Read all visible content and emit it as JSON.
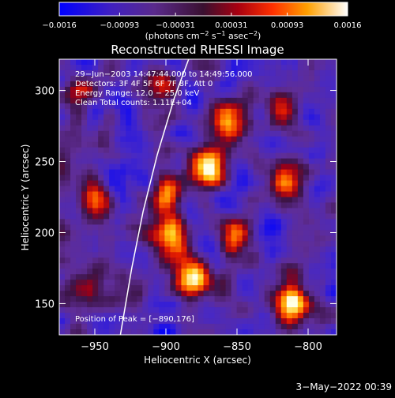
{
  "chart_data": {
    "type": "heatmap",
    "title": "Reconstructed RHESSI Image",
    "xlabel": "Heliocentric X (arcsec)",
    "ylabel": "Heliocentric Y (arcsec)",
    "xlim": [
      -975,
      -780
    ],
    "ylim": [
      128,
      322
    ],
    "x_ticks": [
      -950,
      -900,
      -850,
      -800
    ],
    "x_tick_labels": [
      "−950",
      "−900",
      "−850",
      "−800"
    ],
    "y_ticks": [
      150,
      200,
      250,
      300
    ],
    "y_tick_labels": [
      "150",
      "200",
      "250",
      "300"
    ],
    "colorbar": {
      "range": [
        -0.0016,
        0.0016
      ],
      "ticks": [
        -0.0016,
        -0.00093,
        -0.00031,
        0.00031,
        0.00093,
        0.0016
      ],
      "tick_labels": [
        "−0.0016",
        "−0.00093",
        "−0.00031",
        "0.00031",
        "0.00093",
        "0.0016"
      ],
      "unit_main": "(photons cm",
      "unit_exp1": "−2",
      "unit_mid": " s",
      "unit_exp2": "−1",
      "unit_mid2": " asec",
      "unit_exp3": "−2",
      "unit_end": ")"
    },
    "annotations": [
      "29−Jun−2003 14:47:44.000 to 14:49:56.000",
      "Detectors: 3F 4F 5F 6F 7F 8F, Att 0",
      "Energy Range: 12.0 − 25.0 keV",
      "Clean    Total counts: 1.11E+04"
    ],
    "peak_label": "Position of Peak = [−890,176]",
    "peak_position": [
      -890,
      176
    ],
    "limb_curve": [
      [
        -932,
        128
      ],
      [
        -924,
        175
      ],
      [
        -916,
        215
      ],
      [
        -906,
        255
      ],
      [
        -894,
        295
      ],
      [
        -884,
        322
      ]
    ],
    "hot_regions": [
      {
        "x": -870,
        "y": 245,
        "intensity": 1.0
      },
      {
        "x": -895,
        "y": 195,
        "intensity": 1.0
      },
      {
        "x": -880,
        "y": 168,
        "intensity": 0.95
      },
      {
        "x": -900,
        "y": 225,
        "intensity": 0.8
      },
      {
        "x": -855,
        "y": 278,
        "intensity": 0.75
      },
      {
        "x": -810,
        "y": 150,
        "intensity": 0.9
      },
      {
        "x": -850,
        "y": 195,
        "intensity": 0.7
      },
      {
        "x": -950,
        "y": 225,
        "intensity": 0.6
      },
      {
        "x": -960,
        "y": 300,
        "intensity": 0.55
      },
      {
        "x": -820,
        "y": 285,
        "intensity": 0.55
      },
      {
        "x": -815,
        "y": 235,
        "intensity": 0.5
      },
      {
        "x": -905,
        "y": 300,
        "intensity": 0.5
      },
      {
        "x": -955,
        "y": 160,
        "intensity": 0.5
      }
    ]
  },
  "footer": {
    "timestamp": "3−May−2022 00:39"
  }
}
